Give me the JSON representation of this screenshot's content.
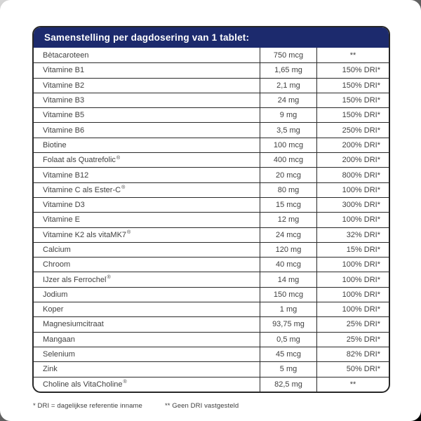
{
  "header": {
    "title": "Samenstelling per dagdosering van 1 tablet:"
  },
  "colors": {
    "header_bg": "#1c2a6d",
    "header_text": "#ffffff",
    "border": "#2a2a2a",
    "row_text": "#414141",
    "card_bg": "#ffffff"
  },
  "table": {
    "rows": [
      {
        "name": "Bètacaroteen",
        "reg": "",
        "amount": "750 mcg",
        "dri": "**"
      },
      {
        "name": "Vitamine B1",
        "reg": "",
        "amount": "1,65 mg",
        "dri": "150% DRI*"
      },
      {
        "name": "Vitamine B2",
        "reg": "",
        "amount": "2,1 mg",
        "dri": "150% DRI*"
      },
      {
        "name": "Vitamine B3",
        "reg": "",
        "amount": "24 mg",
        "dri": "150% DRI*"
      },
      {
        "name": "Vitamine B5",
        "reg": "",
        "amount": "9 mg",
        "dri": "150% DRI*"
      },
      {
        "name": "Vitamine B6",
        "reg": "",
        "amount": "3,5 mg",
        "dri": "250% DRI*"
      },
      {
        "name": "Biotine",
        "reg": "",
        "amount": "100 mcg",
        "dri": "200% DRI*"
      },
      {
        "name": "Folaat als Quatrefolic",
        "reg": "®",
        "amount": "400 mcg",
        "dri": "200% DRI*"
      },
      {
        "name": "Vitamine B12",
        "reg": "",
        "amount": "20 mcg",
        "dri": "800% DRI*"
      },
      {
        "name": "Vitamine C als Ester-C",
        "reg": "®",
        "amount": "80 mg",
        "dri": "100% DRI*"
      },
      {
        "name": "Vitamine D3",
        "reg": "",
        "amount": "15 mcg",
        "dri": "300% DRI*"
      },
      {
        "name": "Vitamine E",
        "reg": "",
        "amount": "12 mg",
        "dri": "100% DRI*"
      },
      {
        "name": "Vitamine K2 als vitaMK7",
        "reg": "®",
        "amount": "24 mcg",
        "dri": "32% DRI*"
      },
      {
        "name": "Calcium",
        "reg": "",
        "amount": "120 mg",
        "dri": "15% DRI*"
      },
      {
        "name": "Chroom",
        "reg": "",
        "amount": "40 mcg",
        "dri": "100% DRI*"
      },
      {
        "name": "IJzer als Ferrochel",
        "reg": "®",
        "amount": "14 mg",
        "dri": "100% DRI*"
      },
      {
        "name": "Jodium",
        "reg": "",
        "amount": "150 mcg",
        "dri": "100% DRI*"
      },
      {
        "name": "Koper",
        "reg": "",
        "amount": "1 mg",
        "dri": "100% DRI*"
      },
      {
        "name": "Magnesiumcitraat",
        "reg": "",
        "amount": "93,75 mg",
        "dri": "25% DRI*"
      },
      {
        "name": "Mangaan",
        "reg": "",
        "amount": "0,5 mg",
        "dri": "25% DRI*"
      },
      {
        "name": "Selenium",
        "reg": "",
        "amount": "45 mcg",
        "dri": "82% DRI*"
      },
      {
        "name": "Zink",
        "reg": "",
        "amount": "5 mg",
        "dri": "50% DRI*"
      },
      {
        "name": "Choline als VitaCholine",
        "reg": "®",
        "amount": "82,5 mg",
        "dri": "**"
      }
    ]
  },
  "footnotes": {
    "note1": "* DRI = dagelijkse referentie inname",
    "note2": "** Geen DRI vastgesteld"
  }
}
